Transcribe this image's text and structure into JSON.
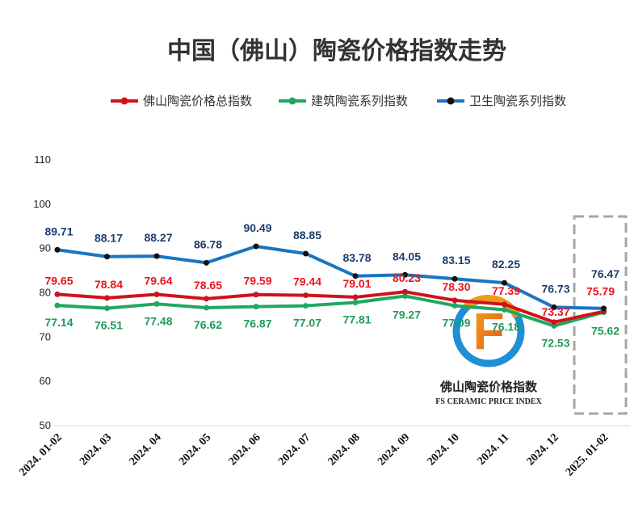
{
  "chart_data": {
    "type": "line",
    "title": "中国（佛山）陶瓷价格指数走势",
    "categories": [
      "2024. 01-02",
      "2024. 03",
      "2024. 04",
      "2024. 05",
      "2024. 06",
      "2024. 07",
      "2024. 08",
      "2024. 09",
      "2024. 10",
      "2024. 11",
      "2024. 12",
      "2025. 01-02"
    ],
    "ylim": [
      50,
      110
    ],
    "yticks": [
      "50",
      "60",
      "70",
      "80",
      "90",
      "100",
      "110"
    ],
    "grid": false,
    "legend_position": "top",
    "series": [
      {
        "name": "佛山陶瓷价格总指数",
        "color": "#d0121b",
        "label_color": "#e8141c",
        "values": [
          79.65,
          78.84,
          79.64,
          78.65,
          79.59,
          79.44,
          79.01,
          80.23,
          78.3,
          77.39,
          73.37,
          75.79
        ],
        "labels": [
          "79.65",
          "78.84",
          "79.64",
          "78.65",
          "79.59",
          "79.44",
          "79.01",
          "80.23",
          "78.30",
          "77.39",
          "73.37",
          "75.79"
        ]
      },
      {
        "name": "建筑陶瓷系列指数",
        "color": "#1fa860",
        "label_color": "#1f9a5a",
        "values": [
          77.14,
          76.51,
          77.48,
          76.62,
          76.87,
          77.07,
          77.81,
          79.27,
          77.09,
          76.18,
          72.53,
          75.62
        ],
        "labels": [
          "77.14",
          "76.51",
          "77.48",
          "76.62",
          "76.87",
          "77.07",
          "77.81",
          "79.27",
          "77.09",
          "76.18",
          "72.53",
          "75.62"
        ]
      },
      {
        "name": "卫生陶瓷系列指数",
        "color": "#1a75c0",
        "label_color": "#1c3e6e",
        "values": [
          89.71,
          88.17,
          88.27,
          86.78,
          90.49,
          88.85,
          83.78,
          84.05,
          83.15,
          82.25,
          76.73,
          76.47
        ],
        "labels": [
          "89.71",
          "88.17",
          "88.27",
          "86.78",
          "90.49",
          "88.85",
          "83.78",
          "84.05",
          "83.15",
          "82.25",
          "76.73",
          "76.47"
        ]
      }
    ]
  },
  "watermark": {
    "logo_letter": "F",
    "name_cn": "佛山陶瓷价格指数",
    "name_en": "FS CERAMIC PRICE INDEX"
  }
}
